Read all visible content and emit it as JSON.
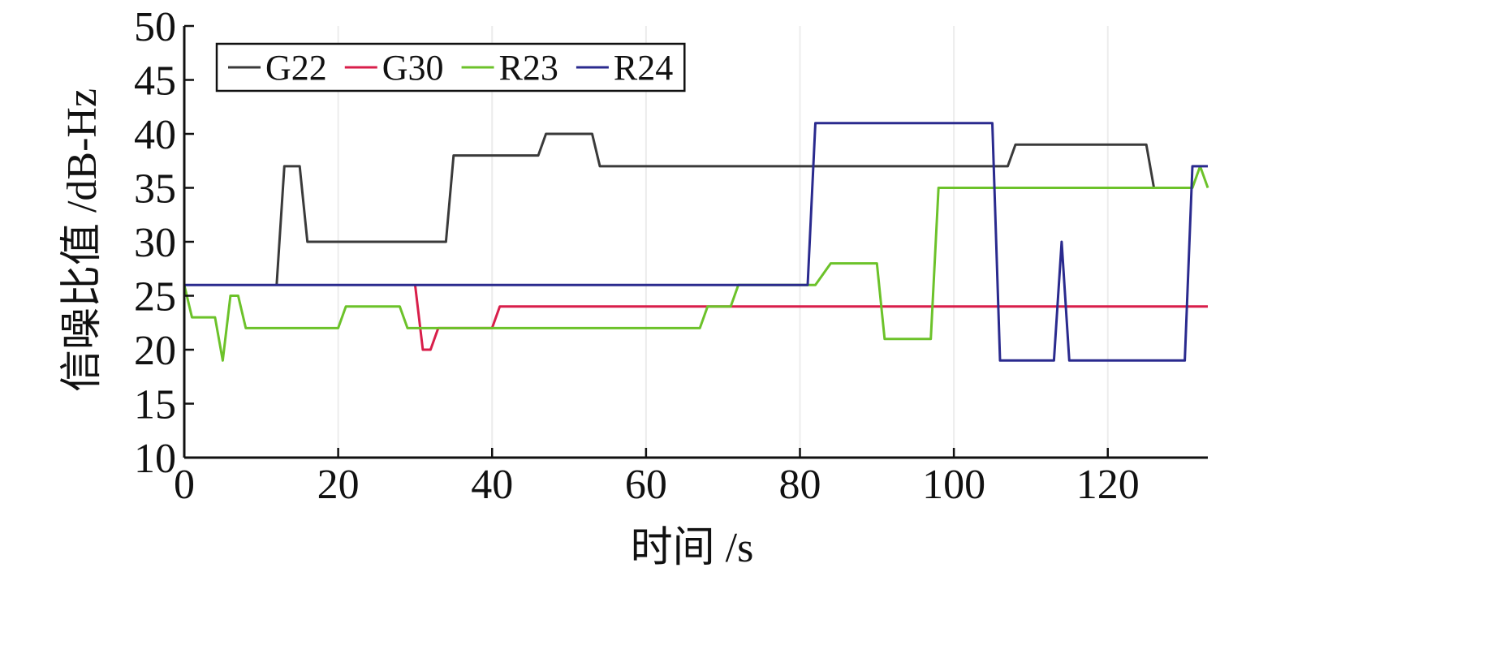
{
  "chart_data": {
    "type": "line",
    "title": "",
    "xlabel": "时间 /s",
    "ylabel": "信噪比值 /dB-Hz",
    "xlim": [
      0,
      133
    ],
    "ylim": [
      10,
      50
    ],
    "x_ticks": [
      0,
      20,
      40,
      60,
      80,
      100,
      120
    ],
    "y_ticks": [
      10,
      15,
      20,
      25,
      30,
      35,
      40,
      45,
      50
    ],
    "grid": true,
    "legend": {
      "placement": "top-left",
      "orientation": "horizontal"
    },
    "series": [
      {
        "name": "G22",
        "color": "#3a3a3a",
        "points": [
          [
            12,
            26
          ],
          [
            13,
            37
          ],
          [
            15,
            37
          ],
          [
            16,
            30
          ],
          [
            34,
            30
          ],
          [
            35,
            38
          ],
          [
            46,
            38
          ],
          [
            47,
            40
          ],
          [
            53,
            40
          ],
          [
            54,
            37
          ],
          [
            107,
            37
          ],
          [
            108,
            39
          ],
          [
            125,
            39
          ],
          [
            126,
            35
          ]
        ]
      },
      {
        "name": "G30",
        "color": "#d81e4a",
        "points": [
          [
            30,
            26
          ],
          [
            31,
            20
          ],
          [
            32,
            20
          ],
          [
            33,
            22
          ],
          [
            40,
            22
          ],
          [
            41,
            24
          ],
          [
            133,
            24
          ]
        ]
      },
      {
        "name": "R23",
        "color": "#6cc22a",
        "points": [
          [
            0,
            26
          ],
          [
            1,
            23
          ],
          [
            4,
            23
          ],
          [
            5,
            19
          ],
          [
            6,
            25
          ],
          [
            7,
            25
          ],
          [
            8,
            22
          ],
          [
            20,
            22
          ],
          [
            21,
            24
          ],
          [
            28,
            24
          ],
          [
            29,
            22
          ],
          [
            67,
            22
          ],
          [
            68,
            24
          ],
          [
            71,
            24
          ],
          [
            72,
            26
          ],
          [
            82,
            26
          ],
          [
            84,
            28
          ],
          [
            90,
            28
          ],
          [
            91,
            21
          ],
          [
            97,
            21
          ],
          [
            98,
            35
          ],
          [
            131,
            35
          ],
          [
            132,
            37
          ],
          [
            133,
            35
          ]
        ]
      },
      {
        "name": "R24",
        "color": "#2a2a8e",
        "points": [
          [
            0,
            26
          ],
          [
            81,
            26
          ],
          [
            82,
            41
          ],
          [
            105,
            41
          ],
          [
            106,
            19
          ],
          [
            113,
            19
          ],
          [
            114,
            30
          ],
          [
            115,
            19
          ],
          [
            130,
            19
          ],
          [
            131,
            37
          ],
          [
            133,
            37
          ]
        ]
      }
    ]
  }
}
